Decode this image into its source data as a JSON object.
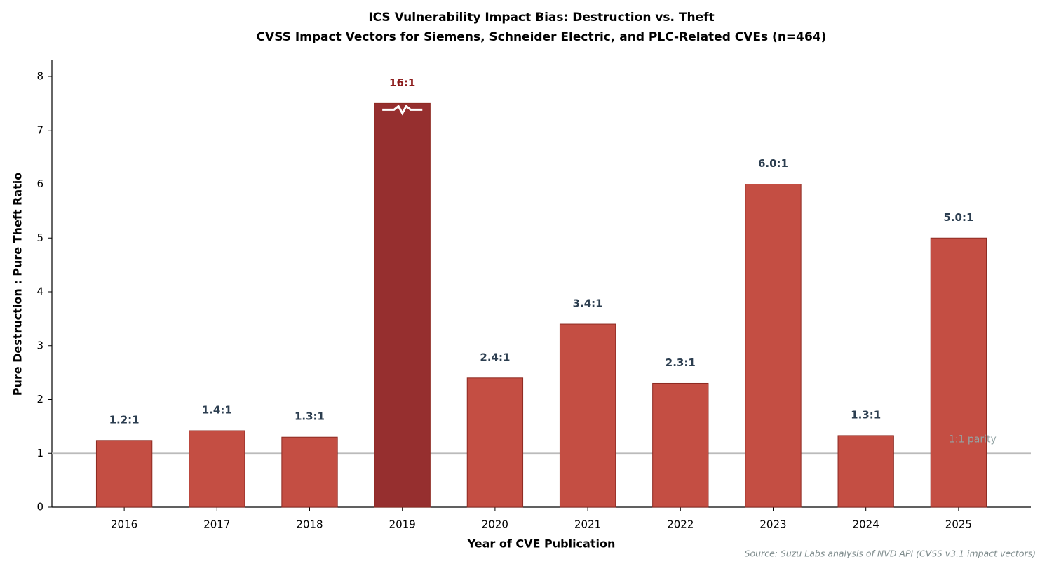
{
  "chart_data": {
    "type": "bar",
    "title": "ICS Vulnerability Impact Bias: Destruction vs. Theft",
    "subtitle": "CVSS Impact Vectors for Siemens, Schneider Electric, and PLC-Related CVEs (n=464)",
    "x_label": "Year of CVE Publication",
    "y_label": "Pure Destruction : Pure Theft Ratio",
    "source": "Source: Suzu Labs analysis of NVD API (CVSS v3.1 impact vectors)",
    "categories": [
      "2016",
      "2017",
      "2018",
      "2019",
      "2020",
      "2021",
      "2022",
      "2023",
      "2024",
      "2025"
    ],
    "values": [
      1.24,
      1.42,
      1.3,
      16,
      2.4,
      3.4,
      2.3,
      6.0,
      1.33,
      5.0
    ],
    "value_labels": [
      "1.2:1",
      "1.4:1",
      "1.3:1",
      "16:1",
      "2.4:1",
      "3.4:1",
      "2.3:1",
      "6.0:1",
      "1.3:1",
      "5.0:1"
    ],
    "color": "#c44e43",
    "highlight_index": 3,
    "highlight_color": "#962f2f",
    "axis_break": 7.5,
    "reference_line": {
      "value": 1,
      "label": "1:1 parity"
    },
    "ylim": [
      0,
      8.3
    ],
    "yticks": [
      0,
      1,
      2,
      3,
      4,
      5,
      6,
      7,
      8
    ],
    "grid": false
  }
}
